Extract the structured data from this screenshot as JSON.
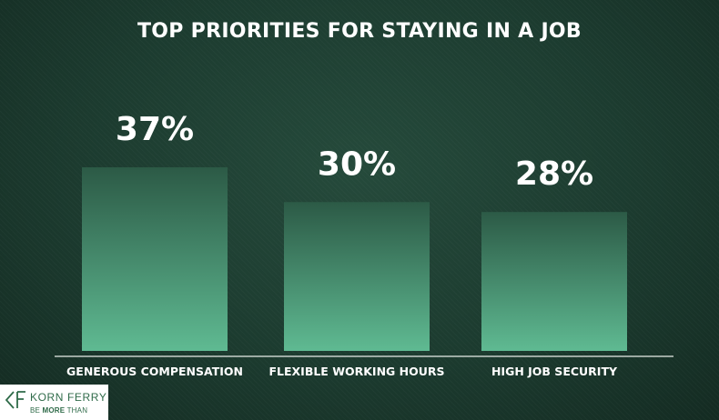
{
  "chart_data": {
    "type": "bar",
    "title": "TOP PRIORITIES FOR STAYING IN A JOB",
    "categories": [
      "GENEROUS COMPENSATION",
      "FLEXIBLE WORKING HOURS",
      "HIGH JOB SECURITY"
    ],
    "values": [
      37,
      30,
      28
    ],
    "data_labels": [
      "37%",
      "30%",
      "28%"
    ],
    "unit": "%",
    "ylim": [
      0,
      48
    ],
    "grid": false,
    "legend": "none",
    "bar_color_top": "#2c5a46",
    "bar_color_bottom": "#5fba92"
  },
  "logo": {
    "name": "KORN FERRY",
    "tagline_prefix": "BE ",
    "tagline_bold": "MORE",
    "tagline_suffix": " THAN"
  },
  "colors": {
    "background": "#1f4033",
    "text": "#ffffff",
    "brand": "#2f6b49"
  }
}
